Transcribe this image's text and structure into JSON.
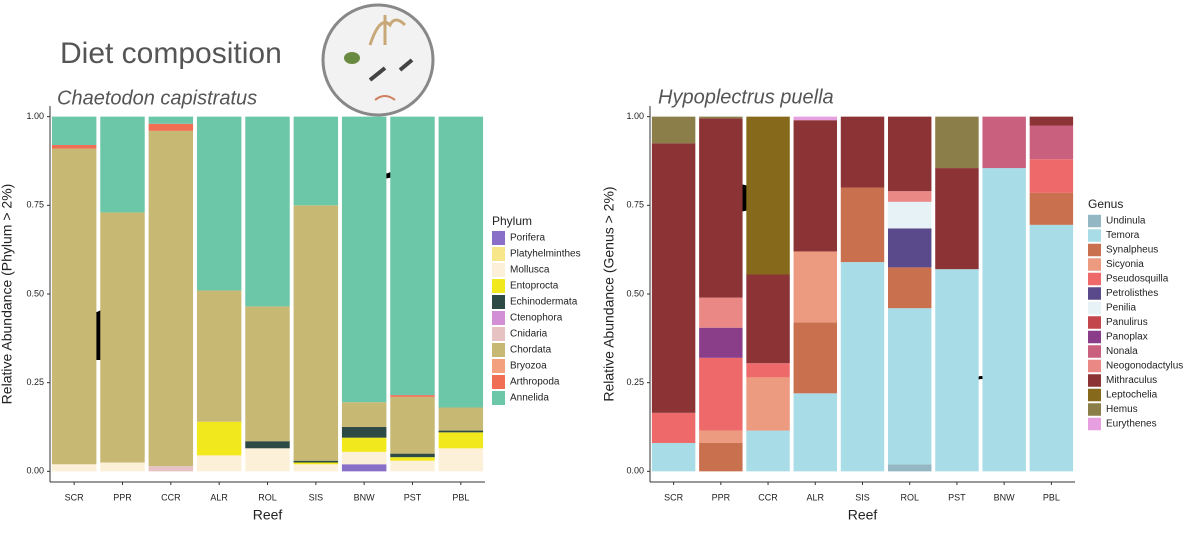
{
  "title": "Diet composition",
  "chart_data": [
    {
      "type": "bar",
      "stacked": true,
      "title": "Chaetodon capistratus",
      "x_label": "Reef",
      "y_label": "Relative Abundance (Phylum > 2%)",
      "legend_title": "Phylum",
      "categories": [
        "SCR",
        "PPR",
        "CCR",
        "ALR",
        "ROL",
        "SIS",
        "BNW",
        "PST",
        "PBL"
      ],
      "ylim": [
        -0.03,
        1.03
      ],
      "yticks": [
        {
          "value": 0,
          "label": "0.00"
        },
        {
          "value": 0.25,
          "label": "0.25"
        },
        {
          "value": 0.5,
          "label": "0.50"
        },
        {
          "value": 0.75,
          "label": "0.75"
        },
        {
          "value": 1,
          "label": "1.00"
        }
      ],
      "series": [
        {
          "name": "Porifera",
          "color": "#8a6fc9",
          "values": [
            0,
            0,
            0,
            0,
            0,
            0,
            0.02,
            0,
            0
          ]
        },
        {
          "name": "Platyhelminthes",
          "color": "#f7e68a",
          "values": [
            0,
            0,
            0,
            0,
            0,
            0,
            0,
            0,
            0
          ]
        },
        {
          "name": "Mollusca",
          "color": "#fdf0d8",
          "values": [
            0.02,
            0.025,
            0,
            0.045,
            0.065,
            0.02,
            0.035,
            0.03,
            0.065
          ]
        },
        {
          "name": "Entoprocta",
          "color": "#f1e81e",
          "values": [
            0,
            0,
            0,
            0.095,
            0,
            0.005,
            0.04,
            0.01,
            0.045
          ]
        },
        {
          "name": "Echinodermata",
          "color": "#2d4a44",
          "values": [
            0,
            0,
            0,
            0,
            0.02,
            0.005,
            0.03,
            0.01,
            0.005
          ]
        },
        {
          "name": "Ctenophora",
          "color": "#d38fd6",
          "values": [
            0,
            0,
            0,
            0,
            0,
            0,
            0,
            0,
            0
          ]
        },
        {
          "name": "Cnidaria",
          "color": "#e6c3c2",
          "values": [
            0,
            0,
            0.015,
            0,
            0,
            0,
            0,
            0,
            0
          ]
        },
        {
          "name": "Chordata",
          "color": "#c7b874",
          "values": [
            0.89,
            0.705,
            0.945,
            0.37,
            0.38,
            0.72,
            0.07,
            0.16,
            0.065
          ]
        },
        {
          "name": "Bryozoa",
          "color": "#f2a07e",
          "values": [
            0,
            0,
            0,
            0,
            0,
            0,
            0,
            0,
            0
          ]
        },
        {
          "name": "Arthropoda",
          "color": "#ef6e54",
          "values": [
            0.01,
            0,
            0.02,
            0,
            0,
            0,
            0,
            0.005,
            0
          ]
        },
        {
          "name": "Annelida",
          "color": "#6cc6a8",
          "values": [
            0.08,
            0.27,
            0.02,
            0.49,
            0.535,
            0.25,
            0.805,
            0.785,
            0.82
          ]
        }
      ]
    },
    {
      "type": "bar",
      "stacked": true,
      "title": "Hypoplectrus puella",
      "x_label": "Reef",
      "y_label": "Relative Abundance (Genus > 2%)",
      "legend_title": "Genus",
      "categories": [
        "SCR",
        "PPR",
        "CCR",
        "ALR",
        "SIS",
        "ROL",
        "PST",
        "BNW",
        "PBL"
      ],
      "ylim": [
        -0.03,
        1.03
      ],
      "yticks": [
        {
          "value": 0,
          "label": "0.00"
        },
        {
          "value": 0.25,
          "label": "0.25"
        },
        {
          "value": 0.5,
          "label": "0.50"
        },
        {
          "value": 0.75,
          "label": "0.75"
        },
        {
          "value": 1,
          "label": "1.00"
        }
      ],
      "series": [
        {
          "name": "Undinula",
          "color": "#93b8c4",
          "values": [
            0,
            0,
            0,
            0,
            0,
            0.02,
            0,
            0,
            0
          ]
        },
        {
          "name": "Temora",
          "color": "#a8dce6",
          "values": [
            0.08,
            0,
            0.115,
            0.22,
            0.59,
            0.44,
            0.57,
            0.855,
            0.695
          ]
        },
        {
          "name": "Synalpheus",
          "color": "#c9704f",
          "values": [
            0,
            0.08,
            0,
            0.2,
            0.21,
            0.115,
            0,
            0,
            0.09
          ]
        },
        {
          "name": "Sicyonia",
          "color": "#ec9a80",
          "values": [
            0,
            0.035,
            0.15,
            0.2,
            0,
            0,
            0,
            0,
            0
          ]
        },
        {
          "name": "Pseudosquilla",
          "color": "#ee6a6a",
          "values": [
            0.085,
            0.205,
            0.04,
            0,
            0,
            0,
            0,
            0,
            0.095
          ]
        },
        {
          "name": "Petrolisthes",
          "color": "#5a4a8c",
          "values": [
            0,
            0,
            0,
            0,
            0,
            0.11,
            0,
            0,
            0
          ]
        },
        {
          "name": "Penilia",
          "color": "#e6f2f5",
          "values": [
            0,
            0,
            0,
            0,
            0,
            0.075,
            0,
            0,
            0
          ]
        },
        {
          "name": "Panulirus",
          "color": "#c2464c",
          "values": [
            0,
            0,
            0,
            0,
            0,
            0,
            0,
            0,
            0
          ]
        },
        {
          "name": "Panoplax",
          "color": "#8a3e8a",
          "values": [
            0,
            0.085,
            0,
            0,
            0,
            0,
            0,
            0,
            0
          ]
        },
        {
          "name": "Nonala",
          "color": "#c9607e",
          "values": [
            0,
            0,
            0,
            0,
            0,
            0,
            0,
            0.145,
            0.095
          ]
        },
        {
          "name": "Neogonodactylus",
          "color": "#e98884",
          "values": [
            0,
            0.085,
            0,
            0,
            0,
            0.03,
            0,
            0,
            0
          ]
        },
        {
          "name": "Mithraculus",
          "color": "#8b3335",
          "values": [
            0.76,
            0.505,
            0.25,
            0.37,
            0.2,
            0.21,
            0.285,
            0,
            0.025
          ]
        },
        {
          "name": "Leptochelia",
          "color": "#86691a",
          "values": [
            0,
            0,
            0.445,
            0,
            0,
            0,
            0,
            0,
            0
          ]
        },
        {
          "name": "Hemus",
          "color": "#8b7e48",
          "values": [
            0.075,
            0.005,
            0,
            0,
            0,
            0,
            0.145,
            0,
            0
          ]
        },
        {
          "name": "Eurythenes",
          "color": "#e6a0e0",
          "values": [
            0,
            0,
            0,
            0.01,
            0,
            0,
            0,
            0,
            0
          ]
        }
      ]
    }
  ]
}
